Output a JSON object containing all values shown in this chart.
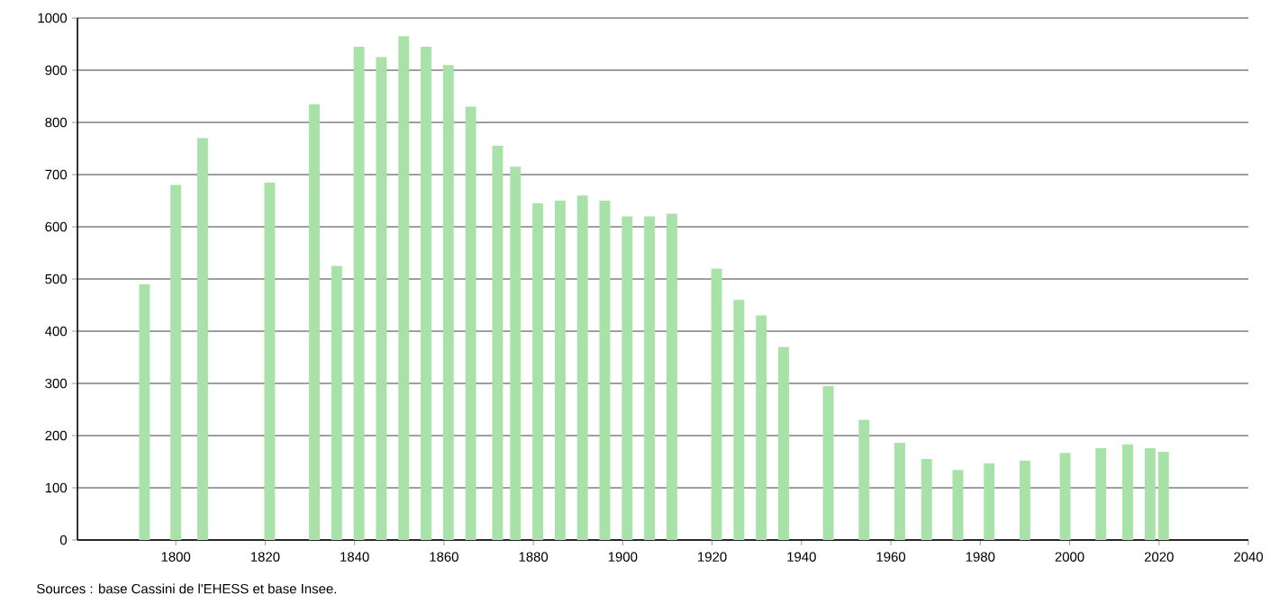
{
  "chart_data": {
    "type": "bar",
    "color": "#a8e2a8",
    "x": [
      1793,
      1800,
      1806,
      1821,
      1831,
      1836,
      1841,
      1846,
      1851,
      1856,
      1861,
      1866,
      1872,
      1876,
      1881,
      1886,
      1891,
      1896,
      1901,
      1906,
      1911,
      1921,
      1926,
      1931,
      1936,
      1946,
      1954,
      1962,
      1968,
      1975,
      1982,
      1990,
      1999,
      2007,
      2013,
      2018,
      2021
    ],
    "values": [
      490,
      680,
      770,
      685,
      835,
      525,
      945,
      925,
      965,
      945,
      910,
      830,
      755,
      715,
      645,
      650,
      660,
      650,
      620,
      620,
      625,
      520,
      460,
      430,
      370,
      295,
      230,
      186,
      155,
      134,
      147,
      152,
      167,
      176,
      183,
      176,
      169
    ],
    "xlim": [
      1778,
      2040
    ],
    "xticks": [
      1800,
      1820,
      1840,
      1860,
      1880,
      1900,
      1920,
      1940,
      1960,
      1980,
      2000,
      2020,
      2040
    ],
    "ylim": [
      0,
      1000
    ],
    "yticks": [
      0,
      100,
      200,
      300,
      400,
      500,
      600,
      700,
      800,
      900,
      1000
    ],
    "grid": "y",
    "annotations": [
      "Sources : base Cassini de l'EHESS et base Insee."
    ]
  }
}
